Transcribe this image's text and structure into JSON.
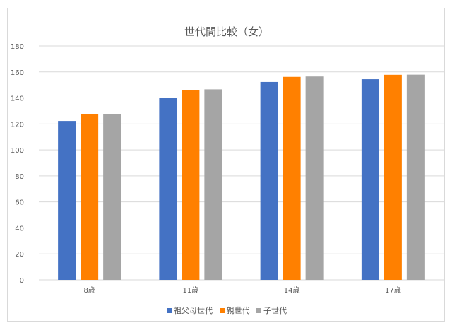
{
  "chart_data": {
    "type": "bar",
    "title": "世代間比較（女）",
    "xlabel": "",
    "ylabel": "",
    "categories": [
      "8歳",
      "11歳",
      "14歳",
      "17歳"
    ],
    "series": [
      {
        "name": "祖父母世代",
        "color": "#4472c4",
        "values": [
          122.3,
          139.9,
          152.3,
          154.4
        ]
      },
      {
        "name": "親世代",
        "color": "#ed7d31",
        "values": [
          127.3,
          145.9,
          156.2,
          157.8
        ]
      },
      {
        "name": "子世代",
        "color": "#a5a5a5",
        "values": [
          127.3,
          146.6,
          156.5,
          157.9
        ]
      }
    ],
    "ylim": [
      0,
      180
    ],
    "yticks": [
      0,
      20,
      40,
      60,
      80,
      100,
      120,
      140,
      160,
      180
    ],
    "grid": true,
    "legend_position": "bottom",
    "colors": {
      "series_orange": "#ff8000",
      "grid": "#d9d9d9",
      "text": "#595959"
    }
  }
}
